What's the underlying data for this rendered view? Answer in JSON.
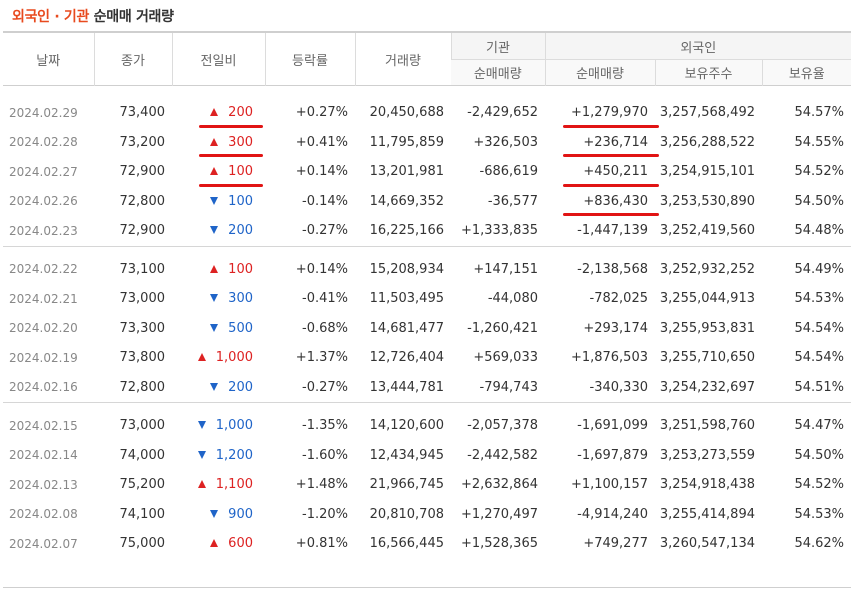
{
  "title": {
    "part1": "외국인 · 기관",
    "part2": "순매매 거래량"
  },
  "headers": {
    "date": "날짜",
    "close": "종가",
    "change": "전일비",
    "rate": "등락률",
    "volume": "거래량",
    "institution": "기관",
    "institution_net": "순매매량",
    "foreign": "외국인",
    "foreign_net": "순매매량",
    "foreign_holdings": "보유주수",
    "foreign_ratio": "보유율"
  },
  "colors": {
    "up": "#dd2222",
    "down": "#1f64c8",
    "accent": "#e84a1e",
    "underline": "#e11414"
  },
  "groups": [
    {
      "rows": [
        {
          "date": "2024.02.29",
          "close": "73,400",
          "dir": "up",
          "change": "200",
          "rate": "+0.27%",
          "volume": "20,450,688",
          "inst": "-2,429,652",
          "frn": "+1,279,970",
          "hold": "3,257,568,492",
          "ratio": "54.57%",
          "ul_chg": true,
          "ul_frn": true
        },
        {
          "date": "2024.02.28",
          "close": "73,200",
          "dir": "up",
          "change": "300",
          "rate": "+0.41%",
          "volume": "11,795,859",
          "inst": "+326,503",
          "frn": "+236,714",
          "hold": "3,256,288,522",
          "ratio": "54.55%",
          "ul_chg": true,
          "ul_frn": true
        },
        {
          "date": "2024.02.27",
          "close": "72,900",
          "dir": "up",
          "change": "100",
          "rate": "+0.14%",
          "volume": "13,201,981",
          "inst": "-686,619",
          "frn": "+450,211",
          "hold": "3,254,915,101",
          "ratio": "54.52%",
          "ul_chg": true,
          "ul_frn": true
        },
        {
          "date": "2024.02.26",
          "close": "72,800",
          "dir": "down",
          "change": "100",
          "rate": "-0.14%",
          "volume": "14,669,352",
          "inst": "-36,577",
          "frn": "+836,430",
          "hold": "3,253,530,890",
          "ratio": "54.50%",
          "ul_chg": false,
          "ul_frn": true
        },
        {
          "date": "2024.02.23",
          "close": "72,900",
          "dir": "down",
          "change": "200",
          "rate": "-0.27%",
          "volume": "16,225,166",
          "inst": "+1,333,835",
          "frn": "-1,447,139",
          "hold": "3,252,419,560",
          "ratio": "54.48%",
          "ul_chg": false,
          "ul_frn": false
        }
      ]
    },
    {
      "rows": [
        {
          "date": "2024.02.22",
          "close": "73,100",
          "dir": "up",
          "change": "100",
          "rate": "+0.14%",
          "volume": "15,208,934",
          "inst": "+147,151",
          "frn": "-2,138,568",
          "hold": "3,252,932,252",
          "ratio": "54.49%"
        },
        {
          "date": "2024.02.21",
          "close": "73,000",
          "dir": "down",
          "change": "300",
          "rate": "-0.41%",
          "volume": "11,503,495",
          "inst": "-44,080",
          "frn": "-782,025",
          "hold": "3,255,044,913",
          "ratio": "54.53%"
        },
        {
          "date": "2024.02.20",
          "close": "73,300",
          "dir": "down",
          "change": "500",
          "rate": "-0.68%",
          "volume": "14,681,477",
          "inst": "-1,260,421",
          "frn": "+293,174",
          "hold": "3,255,953,831",
          "ratio": "54.54%"
        },
        {
          "date": "2024.02.19",
          "close": "73,800",
          "dir": "up",
          "change": "1,000",
          "rate": "+1.37%",
          "volume": "12,726,404",
          "inst": "+569,033",
          "frn": "+1,876,503",
          "hold": "3,255,710,650",
          "ratio": "54.54%"
        },
        {
          "date": "2024.02.16",
          "close": "72,800",
          "dir": "down",
          "change": "200",
          "rate": "-0.27%",
          "volume": "13,444,781",
          "inst": "-794,743",
          "frn": "-340,330",
          "hold": "3,254,232,697",
          "ratio": "54.51%"
        }
      ]
    },
    {
      "rows": [
        {
          "date": "2024.02.15",
          "close": "73,000",
          "dir": "down",
          "change": "1,000",
          "rate": "-1.35%",
          "volume": "14,120,600",
          "inst": "-2,057,378",
          "frn": "-1,691,099",
          "hold": "3,251,598,760",
          "ratio": "54.47%"
        },
        {
          "date": "2024.02.14",
          "close": "74,000",
          "dir": "down",
          "change": "1,200",
          "rate": "-1.60%",
          "volume": "12,434,945",
          "inst": "-2,442,582",
          "frn": "-1,697,879",
          "hold": "3,253,273,559",
          "ratio": "54.50%"
        },
        {
          "date": "2024.02.13",
          "close": "75,200",
          "dir": "up",
          "change": "1,100",
          "rate": "+1.48%",
          "volume": "21,966,745",
          "inst": "+2,632,864",
          "frn": "+1,100,157",
          "hold": "3,254,918,438",
          "ratio": "54.52%"
        },
        {
          "date": "2024.02.08",
          "close": "74,100",
          "dir": "down",
          "change": "900",
          "rate": "-1.20%",
          "volume": "20,810,708",
          "inst": "+1,270,497",
          "frn": "-4,914,240",
          "hold": "3,255,414,894",
          "ratio": "54.53%"
        },
        {
          "date": "2024.02.07",
          "close": "75,000",
          "dir": "up",
          "change": "600",
          "rate": "+0.81%",
          "volume": "16,566,445",
          "inst": "+1,528,365",
          "frn": "+749,277",
          "hold": "3,260,547,134",
          "ratio": "54.62%"
        }
      ]
    }
  ]
}
